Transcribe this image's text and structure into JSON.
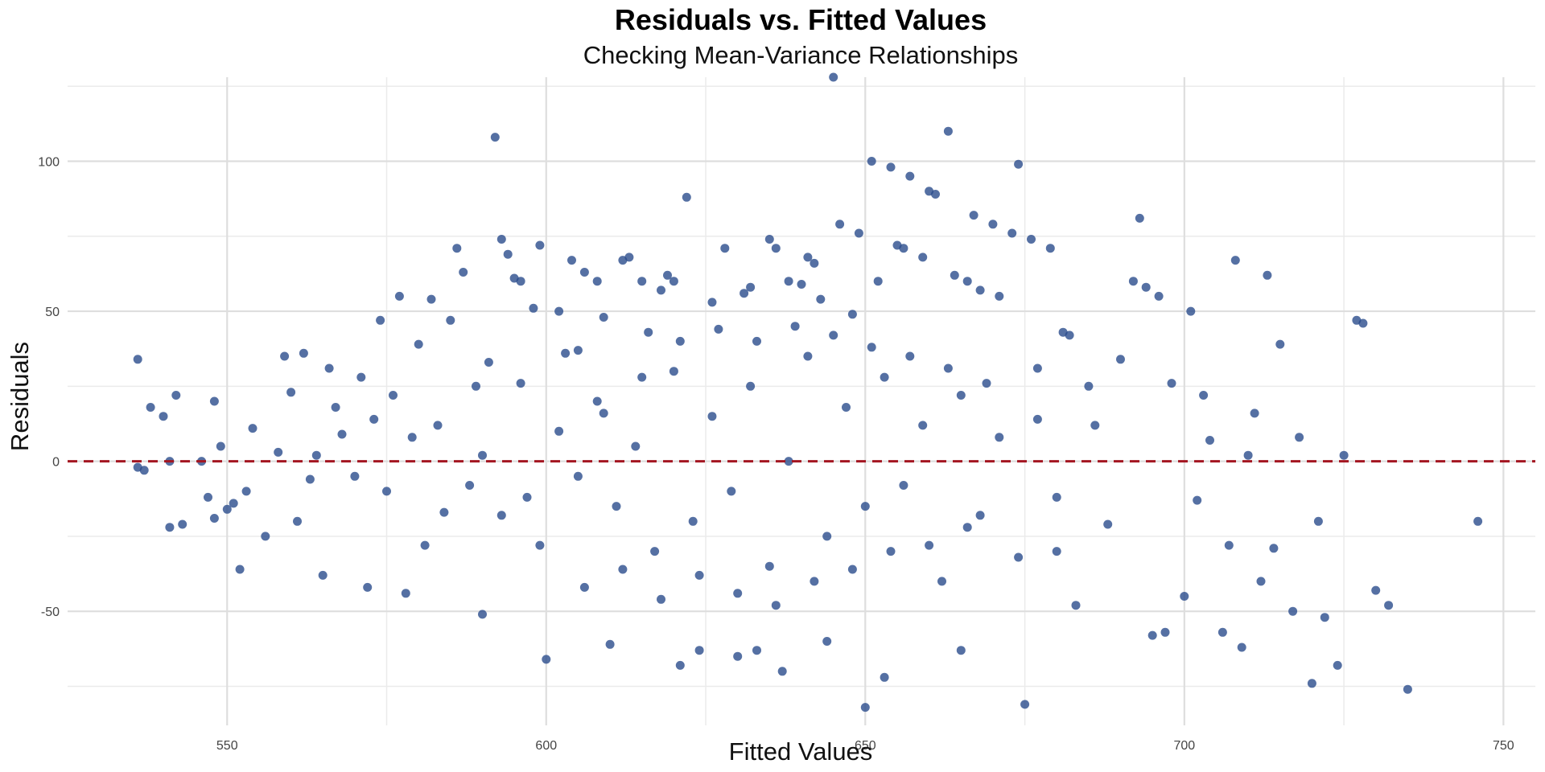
{
  "chart_data": {
    "type": "scatter",
    "title": "Residuals vs. Fitted Values",
    "subtitle": "Checking Mean-Variance Relationships",
    "xlabel": "Fitted Values",
    "ylabel": "Residuals",
    "xlim": [
      525,
      755
    ],
    "ylim": [
      -88,
      128
    ],
    "x_ticks": [
      550,
      600,
      650,
      700,
      750
    ],
    "x_tick_labels": [
      "550",
      "600",
      "650",
      "700",
      "750"
    ],
    "x_minor_ticks": [
      575,
      625,
      675,
      725
    ],
    "y_ticks": [
      -50,
      0,
      50,
      100
    ],
    "y_tick_labels": [
      "-50",
      "0",
      "50",
      "100"
    ],
    "y_minor_ticks": [
      -75,
      -25,
      25,
      75,
      125
    ],
    "grid": true,
    "legend": "none",
    "reference_line": {
      "y": 0,
      "style": "dashed",
      "color": "#A31621"
    },
    "point_color": "#2B4C8C",
    "point_opacity": 0.8,
    "series": [
      {
        "points": [
          [
            536,
            34
          ],
          [
            536,
            -2
          ],
          [
            537,
            -3
          ],
          [
            538,
            18
          ],
          [
            540,
            15
          ],
          [
            541,
            0
          ],
          [
            541,
            -22
          ],
          [
            542,
            22
          ],
          [
            543,
            -21
          ],
          [
            546,
            0
          ],
          [
            547,
            -12
          ],
          [
            548,
            20
          ],
          [
            548,
            -19
          ],
          [
            549,
            5
          ],
          [
            550,
            -16
          ],
          [
            551,
            -14
          ],
          [
            552,
            -36
          ],
          [
            553,
            -10
          ],
          [
            554,
            11
          ],
          [
            556,
            -25
          ],
          [
            558,
            3
          ],
          [
            559,
            35
          ],
          [
            560,
            23
          ],
          [
            561,
            -20
          ],
          [
            562,
            36
          ],
          [
            563,
            -6
          ],
          [
            564,
            2
          ],
          [
            565,
            -38
          ],
          [
            566,
            31
          ],
          [
            567,
            18
          ],
          [
            568,
            9
          ],
          [
            570,
            -5
          ],
          [
            571,
            28
          ],
          [
            572,
            -42
          ],
          [
            573,
            14
          ],
          [
            574,
            47
          ],
          [
            575,
            -10
          ],
          [
            576,
            22
          ],
          [
            577,
            55
          ],
          [
            578,
            -44
          ],
          [
            579,
            8
          ],
          [
            580,
            39
          ],
          [
            581,
            -28
          ],
          [
            582,
            54
          ],
          [
            583,
            12
          ],
          [
            584,
            -17
          ],
          [
            585,
            47
          ],
          [
            586,
            71
          ],
          [
            587,
            63
          ],
          [
            588,
            -8
          ],
          [
            589,
            25
          ],
          [
            590,
            -51
          ],
          [
            591,
            33
          ],
          [
            592,
            108
          ],
          [
            593,
            74
          ],
          [
            594,
            69
          ],
          [
            595,
            61
          ],
          [
            596,
            60
          ],
          [
            597,
            -12
          ],
          [
            598,
            51
          ],
          [
            599,
            72
          ],
          [
            600,
            -66
          ],
          [
            602,
            50
          ],
          [
            604,
            67
          ],
          [
            605,
            37
          ],
          [
            606,
            63
          ],
          [
            608,
            60
          ],
          [
            609,
            48
          ],
          [
            610,
            -61
          ],
          [
            612,
            67
          ],
          [
            613,
            68
          ],
          [
            615,
            60
          ],
          [
            616,
            43
          ],
          [
            618,
            57
          ],
          [
            619,
            62
          ],
          [
            620,
            60
          ],
          [
            621,
            -68
          ],
          [
            622,
            88
          ],
          [
            624,
            -63
          ],
          [
            626,
            53
          ],
          [
            628,
            71
          ],
          [
            630,
            -65
          ],
          [
            631,
            56
          ],
          [
            632,
            58
          ],
          [
            633,
            -63
          ],
          [
            635,
            74
          ],
          [
            636,
            71
          ],
          [
            637,
            -70
          ],
          [
            638,
            60
          ],
          [
            640,
            59
          ],
          [
            641,
            68
          ],
          [
            642,
            66
          ],
          [
            643,
            54
          ],
          [
            644,
            -60
          ],
          [
            645,
            128
          ],
          [
            646,
            79
          ],
          [
            648,
            49
          ],
          [
            649,
            76
          ],
          [
            650,
            -82
          ],
          [
            651,
            100
          ],
          [
            652,
            60
          ],
          [
            653,
            -72
          ],
          [
            654,
            98
          ],
          [
            655,
            72
          ],
          [
            656,
            71
          ],
          [
            657,
            95
          ],
          [
            659,
            68
          ],
          [
            660,
            90
          ],
          [
            661,
            89
          ],
          [
            663,
            110
          ],
          [
            664,
            62
          ],
          [
            665,
            -63
          ],
          [
            666,
            60
          ],
          [
            667,
            82
          ],
          [
            668,
            57
          ],
          [
            670,
            79
          ],
          [
            671,
            55
          ],
          [
            673,
            76
          ],
          [
            674,
            99
          ],
          [
            675,
            -81
          ],
          [
            676,
            74
          ],
          [
            677,
            31
          ],
          [
            679,
            71
          ],
          [
            680,
            -30
          ],
          [
            681,
            43
          ],
          [
            682,
            42
          ],
          [
            683,
            -48
          ],
          [
            685,
            25
          ],
          [
            686,
            12
          ],
          [
            688,
            -21
          ],
          [
            690,
            34
          ],
          [
            692,
            60
          ],
          [
            693,
            81
          ],
          [
            694,
            58
          ],
          [
            695,
            -58
          ],
          [
            696,
            55
          ],
          [
            697,
            -57
          ],
          [
            698,
            26
          ],
          [
            700,
            -45
          ],
          [
            701,
            50
          ],
          [
            702,
            -13
          ],
          [
            703,
            22
          ],
          [
            704,
            7
          ],
          [
            706,
            -57
          ],
          [
            707,
            -28
          ],
          [
            708,
            67
          ],
          [
            709,
            -62
          ],
          [
            710,
            2
          ],
          [
            711,
            16
          ],
          [
            712,
            -40
          ],
          [
            713,
            62
          ],
          [
            714,
            -29
          ],
          [
            715,
            39
          ],
          [
            717,
            -50
          ],
          [
            718,
            8
          ],
          [
            720,
            -74
          ],
          [
            721,
            -20
          ],
          [
            722,
            -52
          ],
          [
            724,
            -68
          ],
          [
            725,
            2
          ],
          [
            727,
            47
          ],
          [
            728,
            46
          ],
          [
            730,
            -43
          ],
          [
            732,
            -48
          ],
          [
            735,
            -76
          ],
          [
            746,
            -20
          ],
          [
            602,
            10
          ],
          [
            605,
            -5
          ],
          [
            608,
            20
          ],
          [
            611,
            -15
          ],
          [
            614,
            5
          ],
          [
            617,
            -30
          ],
          [
            620,
            30
          ],
          [
            623,
            -20
          ],
          [
            626,
            15
          ],
          [
            629,
            -10
          ],
          [
            632,
            25
          ],
          [
            635,
            -35
          ],
          [
            638,
            0
          ],
          [
            641,
            35
          ],
          [
            644,
            -25
          ],
          [
            647,
            18
          ],
          [
            650,
            -15
          ],
          [
            653,
            28
          ],
          [
            656,
            -8
          ],
          [
            659,
            12
          ],
          [
            662,
            -40
          ],
          [
            665,
            22
          ],
          [
            668,
            -18
          ],
          [
            671,
            8
          ],
          [
            674,
            -32
          ],
          [
            677,
            14
          ],
          [
            680,
            -12
          ],
          [
            590,
            2
          ],
          [
            593,
            -18
          ],
          [
            596,
            26
          ],
          [
            599,
            -28
          ],
          [
            603,
            36
          ],
          [
            606,
            -42
          ],
          [
            609,
            16
          ],
          [
            612,
            -36
          ],
          [
            615,
            28
          ],
          [
            618,
            -46
          ],
          [
            621,
            40
          ],
          [
            624,
            -38
          ],
          [
            627,
            44
          ],
          [
            630,
            -44
          ],
          [
            633,
            40
          ],
          [
            636,
            -48
          ],
          [
            639,
            45
          ],
          [
            642,
            -40
          ],
          [
            645,
            42
          ],
          [
            648,
            -36
          ],
          [
            651,
            38
          ],
          [
            654,
            -30
          ],
          [
            657,
            35
          ],
          [
            660,
            -28
          ],
          [
            663,
            31
          ],
          [
            666,
            -22
          ],
          [
            669,
            26
          ]
        ]
      }
    ]
  }
}
